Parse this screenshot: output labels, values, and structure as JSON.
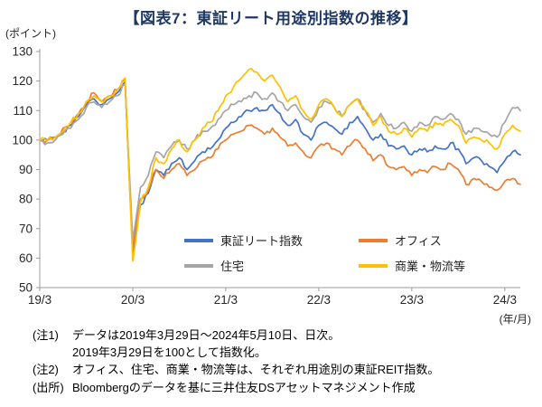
{
  "colors": {
    "title": "#1F3864",
    "axis": "#9b9b9b",
    "tick_label": "#262626"
  },
  "chart_data": {
    "type": "line",
    "title": "【図表7：東証リート用途別指数の推移】",
    "y_unit_label": "(ポイント)",
    "x_unit_label": "(年/月)",
    "ylim": [
      50,
      130
    ],
    "yticks": [
      50,
      60,
      70,
      80,
      90,
      100,
      110,
      120,
      130
    ],
    "grid": false,
    "legend_position": "inside-bottom",
    "x_description": "monthly points from 2019/03 to 2024/05, daily data indexed to 100 at 2019/3/29",
    "xticks": [
      {
        "label": "19/3",
        "month": 0
      },
      {
        "label": "20/3",
        "month": 12
      },
      {
        "label": "21/3",
        "month": 24
      },
      {
        "label": "22/3",
        "month": 36
      },
      {
        "label": "23/3",
        "month": 48
      },
      {
        "label": "24/3",
        "month": 60
      }
    ],
    "series": [
      {
        "name": "東証リート指数",
        "color": "#4472C4",
        "values": [
          100,
          100,
          101,
          103,
          105,
          108,
          112,
          114,
          112,
          114,
          116,
          120,
          62,
          78,
          82,
          90,
          88,
          92,
          94,
          90,
          93,
          96,
          97,
          100,
          104,
          106,
          108,
          110,
          111,
          110,
          112,
          109,
          105,
          107,
          102,
          100,
          105,
          106,
          104,
          102,
          106,
          108,
          104,
          100,
          102,
          98,
          97,
          98,
          95,
          97,
          96,
          98,
          97,
          99,
          97,
          92,
          94,
          93,
          91,
          89,
          93,
          96,
          95
        ]
      },
      {
        "name": "オフィス",
        "color": "#ED7D31",
        "values": [
          100,
          100,
          101,
          104,
          106,
          109,
          113,
          116,
          113,
          115,
          117,
          121,
          63,
          80,
          83,
          90,
          87,
          90,
          92,
          88,
          90,
          93,
          94,
          97,
          100,
          102,
          103,
          105,
          104,
          102,
          104,
          101,
          98,
          99,
          96,
          94,
          98,
          99,
          97,
          95,
          98,
          100,
          97,
          93,
          95,
          91,
          90,
          91,
          88,
          90,
          89,
          91,
          90,
          92,
          90,
          85,
          87,
          86,
          84,
          83,
          86,
          87,
          85
        ]
      },
      {
        "name": "住宅",
        "color": "#A5A5A5",
        "values": [
          100,
          99,
          100,
          102,
          104,
          107,
          111,
          113,
          111,
          113,
          115,
          119,
          66,
          84,
          88,
          96,
          94,
          98,
          100,
          97,
          100,
          103,
          104,
          107,
          110,
          112,
          113,
          115,
          116,
          114,
          116,
          113,
          110,
          112,
          108,
          106,
          111,
          113,
          111,
          108,
          112,
          114,
          110,
          106,
          109,
          105,
          104,
          106,
          103,
          106,
          105,
          108,
          107,
          109,
          107,
          102,
          104,
          103,
          102,
          101,
          106,
          111,
          110
        ]
      },
      {
        "name": "商業・物流等",
        "color": "#FFC000",
        "values": [
          100,
          100,
          101,
          103,
          106,
          109,
          113,
          115,
          113,
          115,
          117,
          121,
          59,
          79,
          84,
          94,
          92,
          97,
          100,
          96,
          100,
          104,
          106,
          110,
          115,
          118,
          121,
          124,
          123,
          120,
          122,
          118,
          113,
          115,
          110,
          107,
          112,
          114,
          111,
          108,
          112,
          114,
          110,
          105,
          108,
          103,
          102,
          104,
          101,
          104,
          103,
          106,
          105,
          107,
          105,
          99,
          101,
          100,
          99,
          97,
          102,
          105,
          103
        ]
      }
    ]
  },
  "notes": [
    {
      "label": "(注1)",
      "text": "データは2019年3月29日～2024年5月10日、日次。"
    },
    {
      "label": "",
      "text": "2019年3月29日を100として指数化。"
    },
    {
      "label": "(注2)",
      "text": "オフィス、住宅、商業・物流等は、それぞれ用途別の東証REIT指数。"
    },
    {
      "label": "(出所)",
      "text": "Bloombergのデータを基に三井住友DSアセットマネジメント作成"
    }
  ]
}
